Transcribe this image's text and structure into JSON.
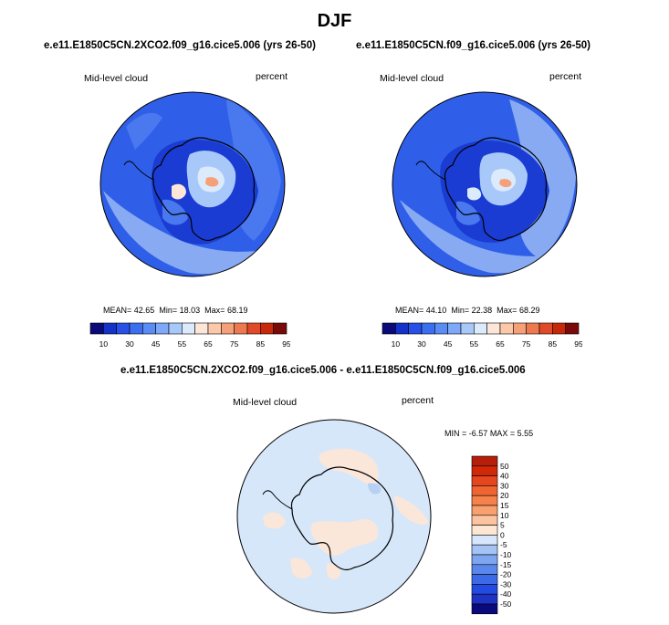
{
  "figure": {
    "season_title": "DJF"
  },
  "panels": [
    {
      "title": "e.e11.E1850C5CN.2XCO2.f09_g16.cice5.006 (yrs 26-50)",
      "variable_label": "Mid-level cloud",
      "units_label": "percent",
      "mean_label": "MEAN=",
      "mean_value": "42.65",
      "min_label": "Min=",
      "min_value": "18.03",
      "max_label": "Max=",
      "max_value": "68.19"
    },
    {
      "title": "e.e11.E1850C5CN.f09_g16.cice5.006 (yrs 26-50)",
      "variable_label": "Mid-level cloud",
      "units_label": "percent",
      "mean_label": "MEAN=",
      "mean_value": "44.10",
      "min_label": "Min=",
      "min_value": "22.38",
      "max_label": "Max=",
      "max_value": "68.29"
    }
  ],
  "difference": {
    "title": "e.e11.E1850C5CN.2XCO2.f09_g16.cice5.006 - e.e11.E1850C5CN.f09_g16.cice5.006",
    "variable_label": "Mid-level cloud",
    "units_label": "percent",
    "min_label": "MIN =",
    "min_value": "-6.57",
    "max_label": "MAX =",
    "max_value": "5.55"
  },
  "colorbar_main": {
    "tick_labels": [
      "10",
      "30",
      "45",
      "55",
      "65",
      "75",
      "85",
      "95"
    ],
    "colors": [
      "#0a0a78",
      "#1432c8",
      "#2850e6",
      "#3c6ef0",
      "#5a8cf5",
      "#7ea8f8",
      "#a8c8fa",
      "#dcebfc",
      "#fde6d8",
      "#fbc8aa",
      "#f5a078",
      "#ee7850",
      "#e04a28",
      "#c8280a",
      "#7a0a0a"
    ]
  },
  "colorbar_diff": {
    "tick_labels": [
      "50",
      "40",
      "30",
      "20",
      "15",
      "10",
      "5",
      "0",
      "-5",
      "-10",
      "-15",
      "-20",
      "-30",
      "-40",
      "-50"
    ],
    "colors": [
      "#b41e0a",
      "#d2280a",
      "#e6461e",
      "#f06432",
      "#f5824b",
      "#f8a06e",
      "#fbc3a0",
      "#fde6d2",
      "#d7e6fa",
      "#a5c3f5",
      "#7da5f0",
      "#5a87eb",
      "#3c69e6",
      "#234be1",
      "#1e32c3",
      "#0a0a7d"
    ]
  },
  "map_colors": {
    "ocean_deep": "#2f5fe8",
    "ocean_mid": "#4a78ee",
    "ocean_light": "#87aaf2",
    "ice_dark": "#1a3cd2",
    "ice_light": "#a8c8fa",
    "ice_pale": "#dcebfc",
    "warm_pale": "#fde6d8",
    "warm": "#f5a078",
    "diff_base": "#d6e7fa",
    "diff_pos": "#fbe7d9",
    "diff_neg": "#b9d0f5",
    "coast": "#000000"
  }
}
